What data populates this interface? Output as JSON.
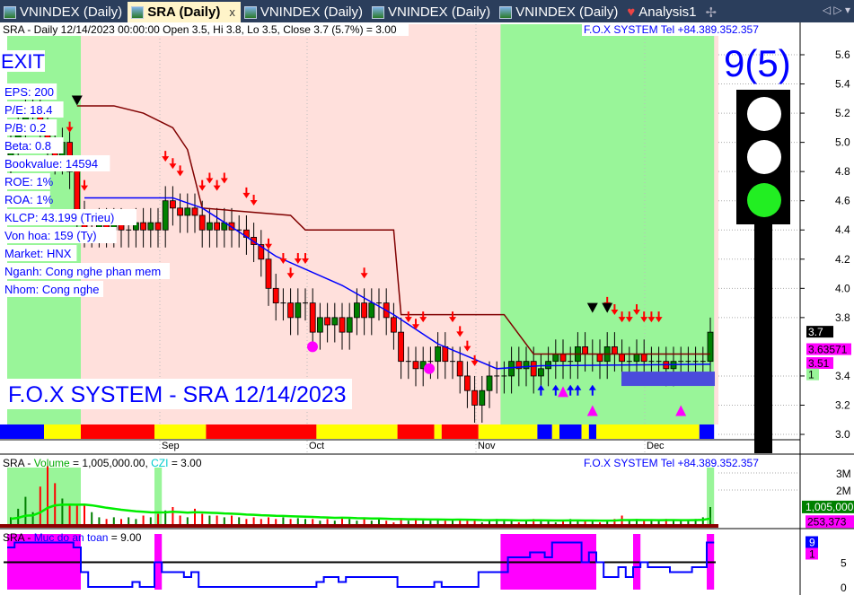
{
  "tabs": [
    {
      "label": "VNINDEX (Daily)"
    },
    {
      "label": "SRA (Daily)",
      "active": true
    },
    {
      "label": "VNINDEX (Daily)"
    },
    {
      "label": "VNINDEX (Daily)"
    },
    {
      "label": "VNINDEX (Daily)"
    },
    {
      "label": "Analysis1"
    }
  ],
  "tab_close": "x",
  "tab_nav": "◁ ▷ ▾",
  "tab_add": "✢",
  "main": {
    "header": "SRA - Daily 12/14/2023 00:00:00 Open 3.5, Hi 3.8, Lo 3.5, Close 3.7 (5.7%)  = 3.00",
    "brand": "F.O.X SYSTEM Tel +84.389.352.357",
    "exit": "EXIT",
    "signal": "9(5)",
    "watermark": "F.O.X SYSTEM - SRA 12/14/2023",
    "info": [
      "EPS: 200",
      "P/E: 18.4",
      "P/B: 0.2",
      "Beta: 0.8",
      "Bookvalue: 14594",
      "ROE: 1%",
      "ROA: 1%",
      "KLCP: 43.199 (Trieu)",
      "Von hoa: 159 (Ty)",
      "Market: HNX",
      "Nganh: Cong nghe phan mem",
      "Nhom: Cong nghe"
    ],
    "y_ticks": [
      "5.6",
      "5.4",
      "5.2",
      "5.0",
      "4.8",
      "4.6",
      "4.4",
      "4.2",
      "4.0",
      "3.8",
      "3.4",
      "3.2",
      "3.0"
    ],
    "labels": {
      "close": "3.7",
      "line1": "3.63571",
      "line2": "3.51",
      "flag": "1"
    },
    "months": [
      "Sep",
      "Oct",
      "Nov",
      "Dec"
    ],
    "traffic_light": [
      "white",
      "white",
      "#22ee22"
    ]
  },
  "volume": {
    "header_prefix": "SRA - ",
    "vol_label": "Volume",
    "vol_value": " = 1,005,000.00, ",
    "czi_label": "CZI",
    "czi_value": " = 3.00",
    "brand": "F.O.X SYSTEM Tel +84.389.352.357",
    "y_ticks": [
      "3M",
      "2M"
    ],
    "labels": {
      "volume": "1,005,000",
      "avg": "253,373"
    }
  },
  "safety": {
    "header_prefix": "SRA - ",
    "label": "Muc do an toan",
    "value": " = 9.00",
    "y_ticks": [
      "5",
      "0"
    ],
    "labels": {
      "value": "9",
      "flag": "1"
    }
  },
  "colors": {
    "bull": "#008000",
    "bear": "#ff0000",
    "green_zone": "#99f599",
    "pink_zone": "#ffe0dc",
    "stop": "#800000",
    "ma": "#0000ff",
    "ma2": "#ff00ff",
    "blue_text": "#0000ff"
  },
  "chart_data": {
    "type": "candlestick",
    "ylim": [
      2.95,
      5.7
    ],
    "closes": [
      5.0,
      5.1,
      5.2,
      5.2,
      5.1,
      5.0,
      4.9,
      5.0,
      4.8,
      4.5,
      4.4,
      4.4,
      4.45,
      4.4,
      4.45,
      4.4,
      4.4,
      4.45,
      4.4,
      4.45,
      4.4,
      4.6,
      4.55,
      4.5,
      4.55,
      4.5,
      4.4,
      4.45,
      4.4,
      4.45,
      4.4,
      4.4,
      4.35,
      4.3,
      4.2,
      4.0,
      3.9,
      3.9,
      3.8,
      3.9,
      3.9,
      3.7,
      3.8,
      3.75,
      3.8,
      3.7,
      3.8,
      3.9,
      3.8,
      3.9,
      3.9,
      3.8,
      3.7,
      3.5,
      3.5,
      3.45,
      3.5,
      3.5,
      3.6,
      3.5,
      3.5,
      3.4,
      3.3,
      3.2,
      3.3,
      3.4,
      3.4,
      3.4,
      3.5,
      3.45,
      3.5,
      3.4,
      3.45,
      3.5,
      3.55,
      3.5,
      3.5,
      3.6,
      3.55,
      3.55,
      3.5,
      3.6,
      3.55,
      3.5,
      3.5,
      3.55,
      3.5,
      3.5,
      3.5,
      3.45,
      3.5,
      3.5,
      3.5,
      3.5,
      3.5,
      3.7
    ],
    "stop": [
      [
        9,
        5.25
      ],
      [
        14,
        5.25
      ],
      [
        18,
        5.2
      ],
      [
        22,
        5.1
      ],
      [
        24,
        4.95
      ],
      [
        26,
        4.55
      ],
      [
        38,
        4.5
      ],
      [
        40,
        4.4
      ],
      [
        52,
        4.4
      ],
      [
        53,
        3.82
      ],
      [
        67,
        3.82
      ],
      [
        71,
        3.55
      ],
      [
        95,
        3.55
      ]
    ],
    "ma": [
      [
        10,
        4.62
      ],
      [
        22,
        4.62
      ],
      [
        26,
        4.55
      ],
      [
        30,
        4.42
      ],
      [
        36,
        4.22
      ],
      [
        45,
        4.02
      ],
      [
        52,
        3.82
      ],
      [
        58,
        3.62
      ],
      [
        66,
        3.45
      ],
      [
        72,
        3.47
      ],
      [
        95,
        3.48
      ]
    ],
    "band": [
      [
        "#0000ff",
        5
      ],
      [
        "#ffff00",
        5
      ],
      [
        "#ff0000",
        10
      ],
      [
        "#ffff00",
        7
      ],
      [
        "#ff0000",
        15
      ],
      [
        "#ffff00",
        11
      ],
      [
        "#ff0000",
        5
      ],
      [
        "#ffff00",
        1
      ],
      [
        "#ff0000",
        5
      ],
      [
        "#ffff00",
        8
      ],
      [
        "#0000ff",
        2
      ],
      [
        "#ffff00",
        1
      ],
      [
        "#0000ff",
        3
      ],
      [
        "#ffff00",
        1
      ],
      [
        "#0000ff",
        1
      ],
      [
        "#ffff00",
        14
      ],
      [
        "#0000ff",
        2
      ]
    ],
    "down_arrows": [
      8,
      9,
      10,
      21,
      22,
      23,
      26,
      27,
      28,
      29,
      32,
      33,
      35,
      37,
      38,
      39,
      40,
      48,
      54,
      55,
      56,
      60,
      61,
      62,
      63,
      81,
      82,
      83,
      84,
      85,
      86,
      87,
      88
    ],
    "up_arrows": [
      72,
      74,
      76,
      77,
      79
    ],
    "magenta_triangles": [
      75,
      79,
      91
    ],
    "black_triangles": [
      9,
      79,
      81
    ],
    "volumes": [
      0.4,
      0.9,
      1.6,
      0.7,
      2.2,
      3.4,
      2.4,
      1.5,
      1.2,
      1.1,
      1.2,
      0.7,
      0.4,
      0.3,
      0.4,
      0.3,
      0.4,
      0.3,
      0.5,
      0.4,
      0.6,
      0.8,
      1.0,
      0.5,
      0.4,
      0.9,
      0.6,
      0.5,
      0.5,
      0.4,
      0.5,
      0.4,
      0.3,
      0.4,
      0.3,
      0.4,
      0.3,
      0.4,
      0.3,
      0.35,
      0.3,
      0.3,
      0.2,
      0.3,
      0.2,
      0.4,
      0.3,
      0.2,
      0.3,
      0.2,
      0.3,
      0.2,
      0.1,
      0.3,
      0.2,
      0.3,
      0.2,
      0.2,
      0.3,
      0.2,
      0.2,
      0.3,
      0.2,
      0.2,
      0.1,
      0.2,
      0.3,
      0.2,
      0.2,
      0.1,
      0.2,
      0.3,
      0.2,
      0.2,
      0.1,
      0.2,
      0.3,
      0.2,
      0.2,
      0.2,
      0.1,
      0.2,
      0.3,
      0.5,
      0.2,
      0.3,
      0.2,
      0.2,
      0.2,
      0.3,
      0.2,
      0.2,
      0.2,
      0.3,
      0.4,
      1.0
    ],
    "safety": [
      8,
      9,
      9,
      9,
      9,
      9,
      9,
      9,
      9,
      8,
      3,
      0,
      0,
      0,
      0,
      0,
      0,
      1,
      0,
      0,
      5,
      3,
      3,
      3,
      2,
      3,
      0,
      0,
      0,
      0,
      0,
      0,
      0,
      0,
      0,
      0,
      0,
      0,
      0,
      0,
      0,
      0,
      1,
      2,
      2,
      1,
      2,
      2,
      2,
      2,
      2,
      2,
      2,
      0,
      0,
      0,
      0,
      0,
      1,
      0,
      0,
      0,
      0,
      0,
      3,
      3,
      3,
      3,
      6,
      6,
      6,
      7,
      7,
      6,
      9,
      9,
      9,
      9,
      5,
      7,
      5,
      2,
      2,
      4,
      2,
      4,
      5,
      4,
      4,
      4,
      3,
      3,
      3,
      4,
      4,
      9
    ],
    "green_zones": [
      [
        0,
        9
      ],
      [
        67,
        95
      ]
    ],
    "safety_zones": [
      [
        0,
        9
      ],
      [
        20,
        20
      ],
      [
        67,
        79
      ],
      [
        85,
        85
      ],
      [
        95,
        95
      ]
    ]
  }
}
